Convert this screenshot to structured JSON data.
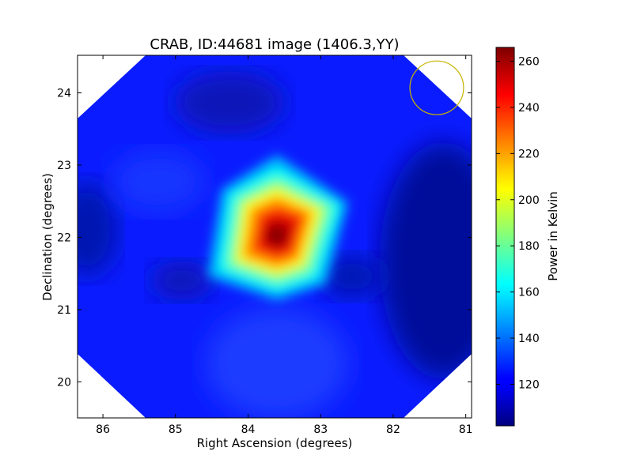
{
  "chart_data": {
    "type": "heatmap",
    "title": "CRAB, ID:44681 image (1406.3,YY)",
    "xlabel": "Right Ascension (degrees)",
    "ylabel": "Declination (degrees)",
    "xlim": [
      86.35,
      80.92
    ],
    "ylim": [
      19.5,
      24.52
    ],
    "x_ticks": [
      86,
      85,
      84,
      83,
      82,
      81
    ],
    "y_ticks": [
      20,
      21,
      22,
      23,
      24
    ],
    "colorbar": {
      "label": "Power in Kelvin",
      "range": [
        102,
        266
      ],
      "ticks": [
        120,
        140,
        160,
        180,
        200,
        220,
        240,
        260
      ],
      "colormap": "jet"
    },
    "background_level": 118,
    "sources": [
      {
        "ra": 83.63,
        "dec": 22.01,
        "peak": 264
      }
    ],
    "beam_circle": {
      "ra": 81.4,
      "dec": 24.07,
      "radius_deg": 0.37,
      "color": "#c8b400"
    }
  }
}
